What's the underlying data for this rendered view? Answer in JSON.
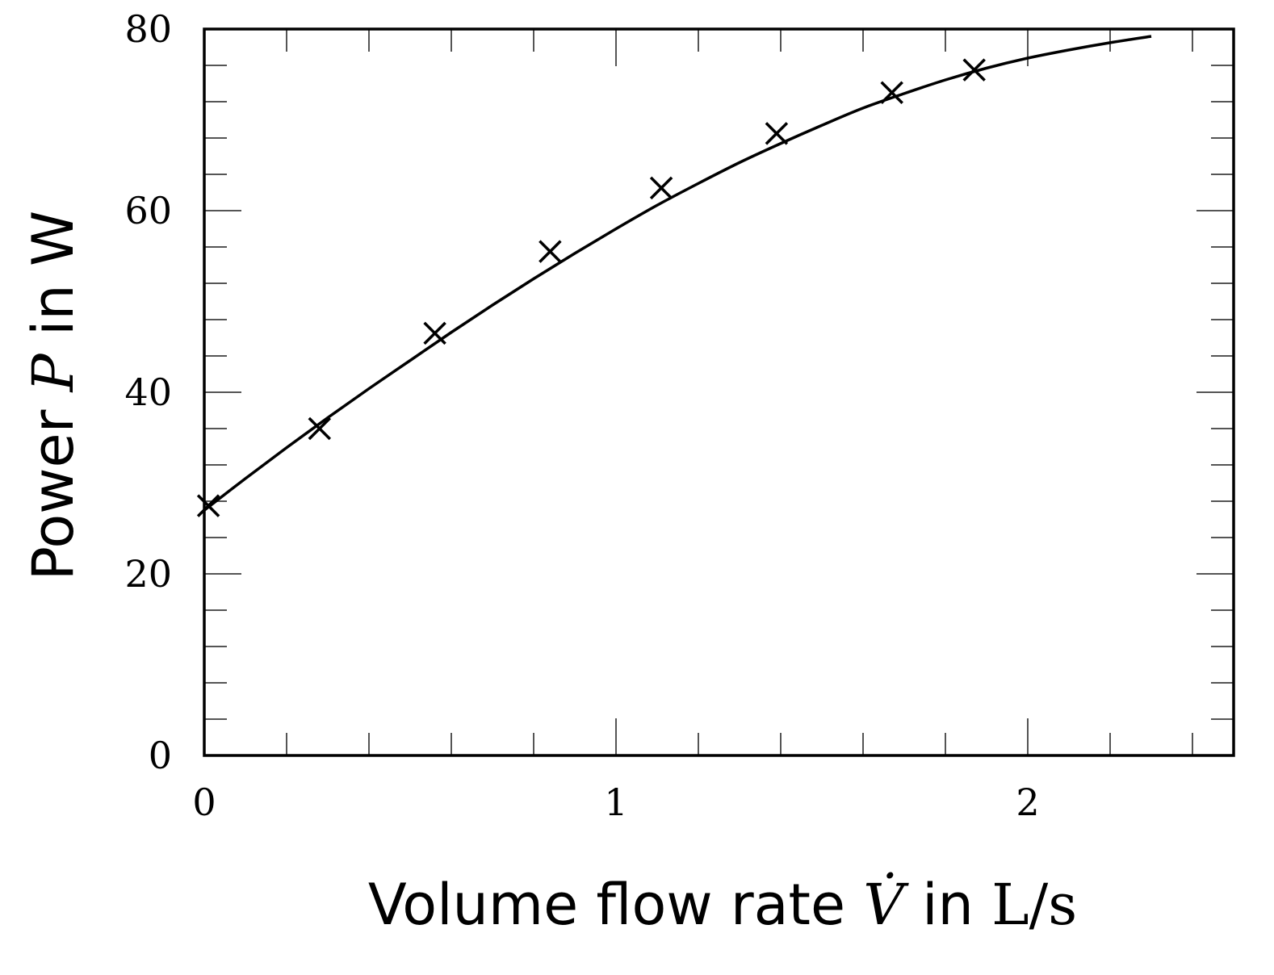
{
  "chart_data": {
    "type": "line",
    "xlabel": {
      "prefix": "Volume flow rate ",
      "var": "V̇",
      "middle": " in ",
      "unit": "L/s"
    },
    "ylabel": {
      "prefix": "Power ",
      "var": "P",
      "middle": " in ",
      "unit": "W"
    },
    "xlim": [
      0,
      2.5
    ],
    "ylim": [
      0,
      80
    ],
    "x_ticks": [
      0,
      1,
      2
    ],
    "x_tick_labels": [
      "0",
      "1",
      "2"
    ],
    "y_ticks": [
      0,
      20,
      40,
      60,
      80
    ],
    "y_tick_labels": [
      "0",
      "20",
      "40",
      "60",
      "80"
    ],
    "x_minor_step": 0.2,
    "y_minor_step": 4,
    "grid": false,
    "series": [
      {
        "kind": "markers",
        "marker": "cross",
        "color": "#000000",
        "x": [
          0.01,
          0.28,
          0.56,
          0.84,
          1.11,
          1.39,
          1.67,
          1.87
        ],
        "y": [
          27.5,
          36.0,
          46.5,
          55.5,
          62.5,
          68.5,
          73.0,
          75.5
        ]
      },
      {
        "kind": "line",
        "color": "#000000",
        "x": [
          0.0,
          0.1,
          0.2,
          0.3,
          0.4,
          0.5,
          0.6,
          0.7,
          0.8,
          0.9,
          1.0,
          1.1,
          1.2,
          1.3,
          1.4,
          1.5,
          1.6,
          1.7,
          1.8,
          1.9,
          2.0,
          2.1,
          2.2,
          2.3
        ],
        "y": [
          27.0,
          30.5,
          33.9,
          37.2,
          40.4,
          43.5,
          46.6,
          49.6,
          52.5,
          55.3,
          58.0,
          60.6,
          63.0,
          65.3,
          67.4,
          69.4,
          71.3,
          72.9,
          74.4,
          75.7,
          76.8,
          77.7,
          78.5,
          79.2
        ]
      }
    ]
  }
}
